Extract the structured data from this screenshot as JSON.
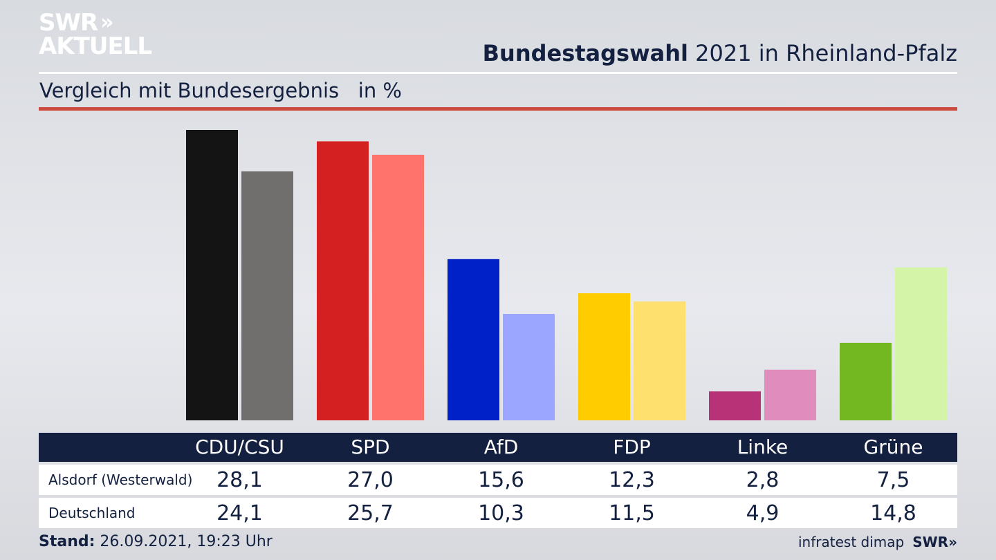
{
  "logo": {
    "line1": "SWR",
    "line2": "AKTUELL",
    "arrows": "»"
  },
  "header": {
    "title_bold": "Bundestagswahl",
    "title_rest": " 2021 in Rheinland-Pfalz",
    "subtitle": "Vergleich mit Bundesergebnis   in %"
  },
  "colors": {
    "navy": "#13203f",
    "accent_red_rule": "#cc4a3e",
    "series_local": [
      "#141414",
      "#d42020",
      "#0020c8",
      "#ffcc00",
      "#b83278",
      "#73b820"
    ],
    "series_national": [
      "#706f6d",
      "#ff736c",
      "#9aa6ff",
      "#fde06e",
      "#e08cbc",
      "#d4f5a8"
    ]
  },
  "chart_data": {
    "type": "bar",
    "title": "Bundestagswahl 2021 in Rheinland-Pfalz",
    "subtitle": "Vergleich mit Bundesergebnis   in %",
    "categories": [
      "CDU/CSU",
      "SPD",
      "AfD",
      "FDP",
      "Linke",
      "Grüne"
    ],
    "series": [
      {
        "name": "Alsdorf (Westerwald)",
        "values": [
          28.1,
          27.0,
          15.6,
          12.3,
          2.8,
          7.5
        ]
      },
      {
        "name": "Deutschland",
        "values": [
          24.1,
          25.7,
          10.3,
          11.5,
          4.9,
          14.8
        ]
      }
    ],
    "value_labels": [
      [
        "28,1",
        "27,0",
        "15,6",
        "12,3",
        "2,8",
        "7,5"
      ],
      [
        "24,1",
        "25,7",
        "10,3",
        "11,5",
        "4,9",
        "14,8"
      ]
    ],
    "ylim": [
      0,
      28.1
    ],
    "grid": false
  },
  "footer": {
    "stand_label": "Stand:",
    "stand_value": " 26.09.2021, 19:23 Uhr",
    "source": "infratest dimap",
    "brand": "SWR",
    "brand_arrows": "»"
  }
}
